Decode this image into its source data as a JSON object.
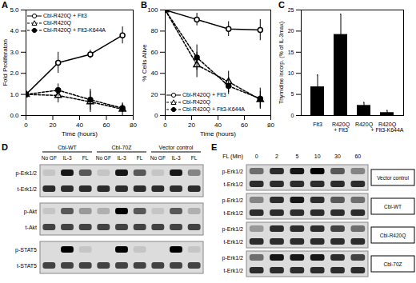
{
  "chart_data": [
    {
      "panel": "A",
      "type": "line",
      "xlabel": "Time (hours)",
      "ylabel": "Fold Proliferaton",
      "xlim": [
        0,
        80
      ],
      "xticks": [
        0,
        20,
        40,
        60,
        80
      ],
      "ylim": [
        0,
        5
      ],
      "yticks": [
        0,
        1,
        2,
        3,
        4,
        5
      ],
      "legend": "top-left",
      "x": [
        0,
        24,
        48,
        72
      ],
      "series": [
        {
          "name": "Cbl-R420Q + Flt3",
          "color": "#000000",
          "marker": "circle-open",
          "line_style": "solid",
          "values": [
            1,
            2.5,
            2.9,
            3.8
          ],
          "error": [
            0,
            0.5,
            0.2,
            0.4
          ]
        },
        {
          "name": "Cbl-R420Q",
          "color": "#000000",
          "marker": "triangle-open",
          "line_style": "dashed",
          "values": [
            1,
            0.95,
            0.65,
            0.3
          ],
          "error": [
            0,
            0.35,
            0.5,
            0.3
          ]
        },
        {
          "name": "Cbl-R420Q + Flt3-K644A",
          "color": "#000000",
          "marker": "circle-filled",
          "line_style": "dashed",
          "values": [
            1,
            1.2,
            0.75,
            0.35
          ],
          "error": [
            0,
            0.3,
            0.5,
            0.2
          ]
        }
      ]
    },
    {
      "panel": "B",
      "type": "line",
      "xlabel": "Time (hours)",
      "ylabel": "% Cells Alive",
      "xlim": [
        0,
        80
      ],
      "xticks": [
        0,
        20,
        40,
        60,
        80
      ],
      "ylim": [
        0,
        100
      ],
      "yticks": [
        0,
        20,
        40,
        60,
        80,
        100
      ],
      "legend": "bottom-left",
      "x": [
        0,
        24,
        48,
        72
      ],
      "series": [
        {
          "name": "Cbl-R420Q + Flt3",
          "color": "#000000",
          "marker": "circle-open",
          "line_style": "solid",
          "values": [
            100,
            91,
            82,
            81
          ],
          "error": [
            0,
            6,
            7,
            10
          ]
        },
        {
          "name": "Cbl-R420Q",
          "color": "#000000",
          "marker": "triangle-open",
          "line_style": "dashed",
          "values": [
            100,
            48,
            32,
            15
          ],
          "error": [
            0,
            12,
            10,
            8
          ]
        },
        {
          "name": "Cbl-R420Q + Flt3-K644A",
          "color": "#000000",
          "marker": "circle-filled",
          "line_style": "dashed",
          "values": [
            100,
            55,
            28,
            16
          ],
          "error": [
            0,
            12,
            8,
            10
          ]
        }
      ]
    },
    {
      "panel": "C",
      "type": "bar",
      "ylabel": "Thymidine incorp. (% of IL-3max)",
      "categories": [
        "Flt3",
        "R420Q + Flt3",
        "R420Q",
        "R420Q + Flt3-K644A"
      ],
      "values": [
        6.8,
        19.2,
        2.4,
        0.7
      ],
      "error": [
        2.8,
        4.8,
        0.7,
        0.5
      ],
      "color": "#000000",
      "ylim": [
        0,
        25
      ],
      "yticks": [
        0,
        5,
        10,
        15,
        20,
        25
      ]
    },
    {
      "panel": "D",
      "type": "blot",
      "groups": [
        {
          "label": "Cbl-WT",
          "lanes": [
            "No GF",
            "IL-3",
            "FL"
          ]
        },
        {
          "label": "Cbl-70Z",
          "lanes": [
            "No GF",
            "IL-3",
            "FL"
          ]
        },
        {
          "label": "Vector control",
          "lanes": [
            "No GF",
            "IL-3",
            "FL"
          ]
        }
      ],
      "rows": [
        {
          "label": "p-Erk1/2",
          "intensity": [
            0.1,
            0.9,
            0.6,
            0.1,
            0.9,
            0.6,
            0.1,
            0.9,
            0.4
          ]
        },
        {
          "label": "t-Erk1/2",
          "intensity": [
            0.8,
            0.8,
            0.8,
            0.8,
            0.8,
            0.8,
            0.8,
            0.8,
            0.8
          ]
        },
        {
          "label": "p-Akt",
          "intensity": [
            0.1,
            0.6,
            0.3,
            0.2,
            1.0,
            0.6,
            0.1,
            0.6,
            0.2
          ]
        },
        {
          "label": "t-Akt",
          "intensity": [
            0.7,
            0.7,
            0.7,
            0.7,
            0.7,
            0.7,
            0.7,
            0.7,
            0.7
          ]
        },
        {
          "label": "p-STAT5",
          "intensity": [
            0.0,
            1.0,
            0.1,
            0.0,
            1.0,
            0.1,
            0.0,
            1.0,
            0.1
          ]
        },
        {
          "label": "t-STAT5",
          "intensity": [
            0.7,
            0.7,
            0.7,
            0.7,
            0.7,
            0.7,
            0.7,
            0.7,
            0.7
          ]
        }
      ]
    },
    {
      "panel": "E",
      "type": "blot",
      "lane_title": "FL (Min)",
      "lanes": [
        0,
        2,
        5,
        10,
        30,
        60
      ],
      "blocks": [
        {
          "label": "Vector control",
          "rows": [
            {
              "label": "p-Erk1/2",
              "intensity": [
                0.5,
                0.8,
                0.9,
                1.0,
                0.6,
                0.4
              ]
            },
            {
              "label": "t-Erk1/2",
              "intensity": [
                0.8,
                0.8,
                0.8,
                0.8,
                0.8,
                0.8
              ]
            }
          ]
        },
        {
          "label": "Cbl-WT",
          "rows": [
            {
              "label": "p-Erk1/2",
              "intensity": [
                0.4,
                0.8,
                0.9,
                0.8,
                0.6,
                0.5
              ]
            },
            {
              "label": "t-Erk1/2",
              "intensity": [
                0.8,
                0.8,
                0.8,
                0.8,
                0.8,
                0.8
              ]
            }
          ]
        },
        {
          "label": "Cbl-R420Q",
          "rows": [
            {
              "label": "p-Erk1/2",
              "intensity": [
                0.3,
                0.8,
                0.8,
                0.8,
                0.7,
                0.5
              ]
            },
            {
              "label": "t-Erk1/2",
              "intensity": [
                0.8,
                0.8,
                0.8,
                0.8,
                0.8,
                0.8
              ]
            }
          ]
        },
        {
          "label": "Cbl-70Z",
          "rows": [
            {
              "label": "p-Erk1/2",
              "intensity": [
                0.5,
                0.9,
                0.9,
                0.9,
                0.8,
                0.7
              ]
            },
            {
              "label": "t-Erk1/2",
              "intensity": [
                0.8,
                0.8,
                0.8,
                0.8,
                0.8,
                0.8
              ]
            }
          ]
        }
      ]
    }
  ]
}
